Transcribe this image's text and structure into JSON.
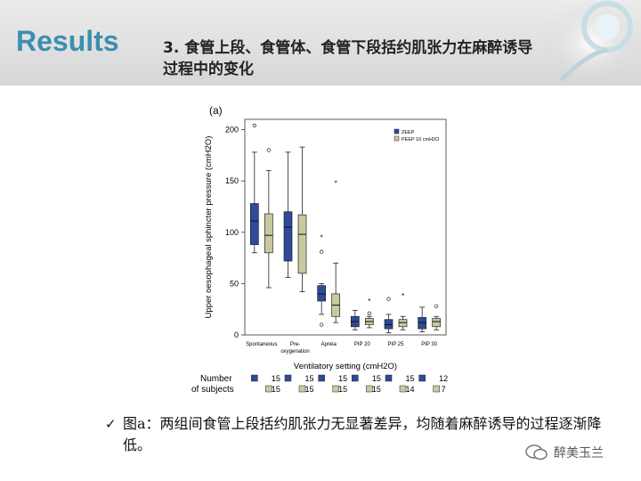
{
  "header": {
    "title": "Results",
    "subtitle": "3. 食管上段、食管体、食管下段括约肌张力在麻醉诱导过程中的变化"
  },
  "figure": {
    "panel_label": "(a)",
    "subjects_label_1": "Number",
    "subjects_label_2": "of subjects"
  },
  "chart_data": {
    "type": "box",
    "ylabel": "Upper oesophageal sphincter pressure (cmH2O)",
    "xlabel": "Ventilatory setting (cmH2O)",
    "ylim": [
      0,
      210
    ],
    "yticks": [
      0,
      50,
      100,
      150,
      200
    ],
    "categories": [
      "Spontaneous",
      "Pre-\noxygenation",
      "Apnéa",
      "PIP 20",
      "PIP 25",
      "PIP 30"
    ],
    "series": [
      {
        "name": "ZEEP",
        "color": "#2e4a9a",
        "boxes": [
          {
            "min": 80,
            "q1": 88,
            "median": 111,
            "q3": 128,
            "max": 178,
            "outliers": [
              204
            ]
          },
          {
            "min": 56,
            "q1": 72,
            "median": 105,
            "q3": 120,
            "max": 178,
            "outliers": []
          },
          {
            "min": 20,
            "q1": 33,
            "median": 40,
            "q3": 48,
            "max": 50,
            "outliers": [
              10,
              81
            ],
            "extremes": [
              95
            ]
          },
          {
            "min": 5,
            "q1": 8,
            "median": 13,
            "q3": 18,
            "max": 24,
            "outliers": []
          },
          {
            "min": 2,
            "q1": 6,
            "median": 10,
            "q3": 15,
            "max": 20,
            "outliers": [
              35
            ]
          },
          {
            "min": 3,
            "q1": 6,
            "median": 12,
            "q3": 17,
            "max": 27,
            "outliers": []
          }
        ],
        "n": [
          15,
          15,
          15,
          15,
          15,
          12
        ]
      },
      {
        "name": "PEEP 10 cmH2O",
        "color": "#c9c9a0",
        "boxes": [
          {
            "min": 46,
            "q1": 80,
            "median": 97,
            "q3": 118,
            "max": 160,
            "outliers": [
              180
            ]
          },
          {
            "min": 42,
            "q1": 60,
            "median": 98,
            "q3": 117,
            "max": 183,
            "outliers": []
          },
          {
            "min": 12,
            "q1": 18,
            "median": 29,
            "q3": 40,
            "max": 70,
            "outliers": [],
            "extremes": [
              148
            ]
          },
          {
            "min": 7,
            "q1": 10,
            "median": 13,
            "q3": 16,
            "max": 18,
            "outliers": [
              21
            ],
            "extremes": [
              33
            ]
          },
          {
            "min": 5,
            "q1": 8,
            "median": 12,
            "q3": 15,
            "max": 18,
            "outliers": [],
            "extremes": [
              38
            ]
          },
          {
            "min": 5,
            "q1": 8,
            "median": 13,
            "q3": 16,
            "max": 18,
            "outliers": [
              28
            ]
          }
        ],
        "n": [
          15,
          15,
          15,
          15,
          14,
          7
        ]
      }
    ],
    "legend_placement": "top-right"
  },
  "caption": {
    "check_glyph": "✓",
    "text": "图a：两组间食管上段括约肌张力无显著差异，均随着麻醉诱导的过程逐渐降低。"
  },
  "watermark": {
    "text": "醉美玉兰"
  }
}
